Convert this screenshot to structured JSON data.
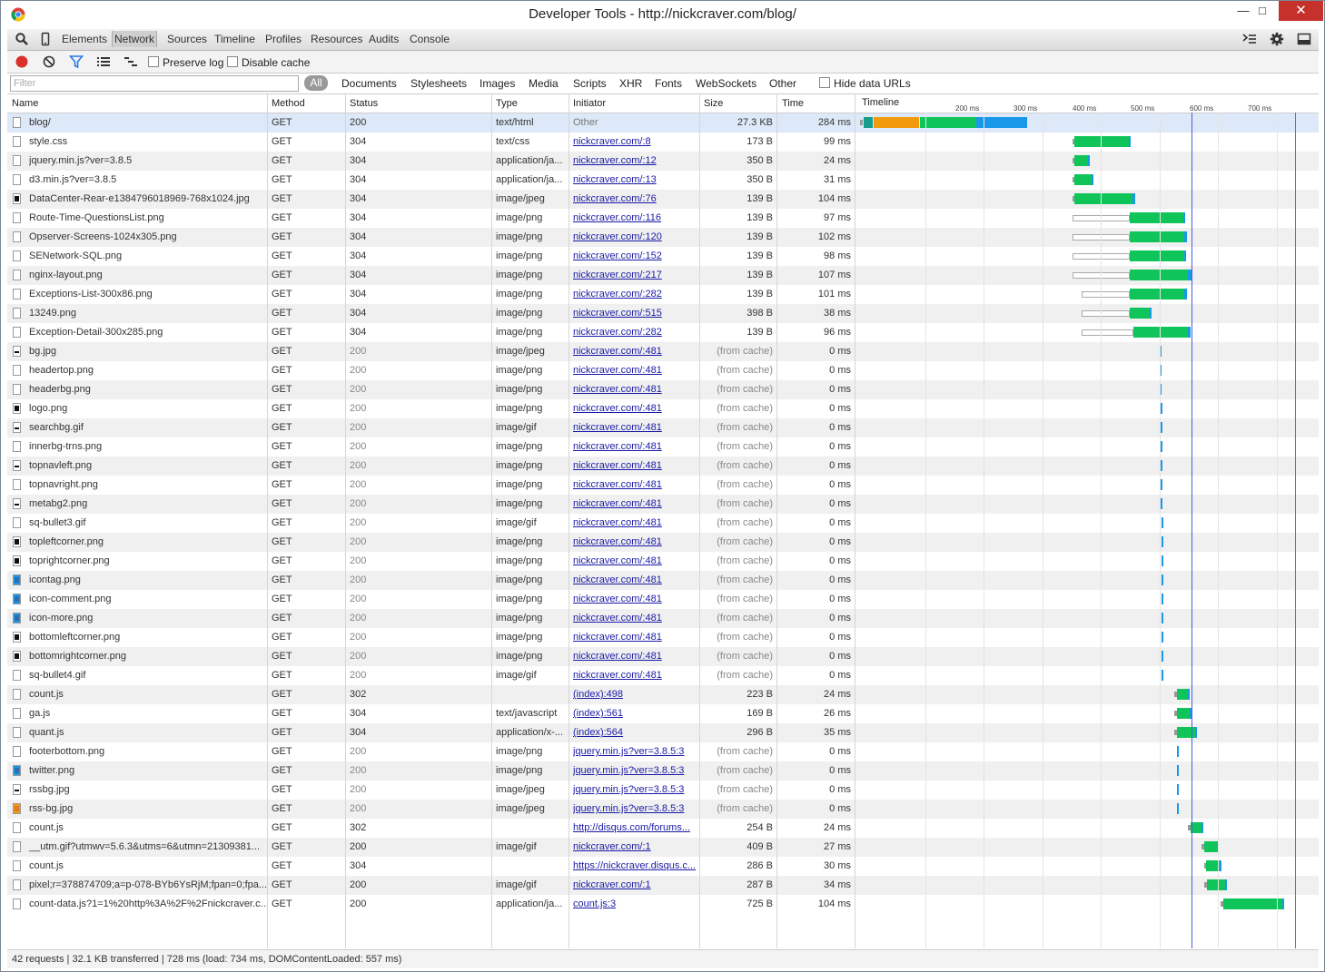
{
  "window": {
    "title": "Developer Tools - http://nickcraver.com/blog/"
  },
  "toolbar": {
    "panels": [
      "Elements",
      "Network",
      "Sources",
      "Timeline",
      "Profiles",
      "Resources",
      "Audits",
      "Console"
    ],
    "selected_panel": "Network"
  },
  "network_toolbar": {
    "preserve_log": "Preserve log",
    "disable_cache": "Disable cache"
  },
  "filter": {
    "placeholder": "Filter",
    "all_label": "All",
    "types": [
      "Documents",
      "Stylesheets",
      "Images",
      "Media",
      "Scripts",
      "XHR",
      "Fonts",
      "WebSockets",
      "Other"
    ],
    "hide_data_urls": "Hide data URLs"
  },
  "columns": {
    "name": "Name",
    "method": "Method",
    "status": "Status",
    "type": "Type",
    "initiator": "Initiator",
    "size": "Size",
    "time": "Time",
    "timeline": "Timeline"
  },
  "timeline_ticks": [
    "200 ms",
    "300 ms",
    "400 ms",
    "500 ms",
    "600 ms",
    "700 ms"
  ],
  "requests": [
    {
      "name": "blog/",
      "method": "GET",
      "status": "200",
      "type": "text/html",
      "initiator": "Other",
      "size": "27.3 KB",
      "time": "284 ms",
      "icon": "file"
    },
    {
      "name": "style.css",
      "method": "GET",
      "status": "304",
      "type": "text/css",
      "initiator": "nickcraver.com/:8",
      "size": "173 B",
      "time": "99 ms",
      "icon": "file"
    },
    {
      "name": "jquery.min.js?ver=3.8.5",
      "method": "GET",
      "status": "304",
      "type": "application/ja...",
      "initiator": "nickcraver.com/:12",
      "size": "350 B",
      "time": "24 ms",
      "icon": "file"
    },
    {
      "name": "d3.min.js?ver=3.8.5",
      "method": "GET",
      "status": "304",
      "type": "application/ja...",
      "initiator": "nickcraver.com/:13",
      "size": "350 B",
      "time": "31 ms",
      "icon": "file"
    },
    {
      "name": "DataCenter-Rear-e1384796018969-768x1024.jpg",
      "method": "GET",
      "status": "304",
      "type": "image/jpeg",
      "initiator": "nickcraver.com/:76",
      "size": "139 B",
      "time": "104 ms",
      "icon": "dark"
    },
    {
      "name": "Route-Time-QuestionsList.png",
      "method": "GET",
      "status": "304",
      "type": "image/png",
      "initiator": "nickcraver.com/:116",
      "size": "139 B",
      "time": "97 ms",
      "icon": "file"
    },
    {
      "name": "Opserver-Screens-1024x305.png",
      "method": "GET",
      "status": "304",
      "type": "image/png",
      "initiator": "nickcraver.com/:120",
      "size": "139 B",
      "time": "102 ms",
      "icon": "file"
    },
    {
      "name": "SENetwork-SQL.png",
      "method": "GET",
      "status": "304",
      "type": "image/png",
      "initiator": "nickcraver.com/:152",
      "size": "139 B",
      "time": "98 ms",
      "icon": "file"
    },
    {
      "name": "nginx-layout.png",
      "method": "GET",
      "status": "304",
      "type": "image/png",
      "initiator": "nickcraver.com/:217",
      "size": "139 B",
      "time": "107 ms",
      "icon": "file"
    },
    {
      "name": "Exceptions-List-300x86.png",
      "method": "GET",
      "status": "304",
      "type": "image/png",
      "initiator": "nickcraver.com/:282",
      "size": "139 B",
      "time": "101 ms",
      "icon": "file"
    },
    {
      "name": "13249.png",
      "method": "GET",
      "status": "304",
      "type": "image/png",
      "initiator": "nickcraver.com/:515",
      "size": "398 B",
      "time": "38 ms",
      "icon": "file"
    },
    {
      "name": "Exception-Detail-300x285.png",
      "method": "GET",
      "status": "304",
      "type": "image/png",
      "initiator": "nickcraver.com/:282",
      "size": "139 B",
      "time": "96 ms",
      "icon": "file"
    },
    {
      "name": "bg.jpg",
      "method": "GET",
      "status": "200",
      "type": "image/jpeg",
      "initiator": "nickcraver.com/:481",
      "size": "(from cache)",
      "time": "0 ms",
      "icon": "dash"
    },
    {
      "name": "headertop.png",
      "method": "GET",
      "status": "200",
      "type": "image/png",
      "initiator": "nickcraver.com/:481",
      "size": "(from cache)",
      "time": "0 ms",
      "icon": "file"
    },
    {
      "name": "headerbg.png",
      "method": "GET",
      "status": "200",
      "type": "image/png",
      "initiator": "nickcraver.com/:481",
      "size": "(from cache)",
      "time": "0 ms",
      "icon": "file"
    },
    {
      "name": "logo.png",
      "method": "GET",
      "status": "200",
      "type": "image/png",
      "initiator": "nickcraver.com/:481",
      "size": "(from cache)",
      "time": "0 ms",
      "icon": "dark"
    },
    {
      "name": "searchbg.gif",
      "method": "GET",
      "status": "200",
      "type": "image/gif",
      "initiator": "nickcraver.com/:481",
      "size": "(from cache)",
      "time": "0 ms",
      "icon": "dash"
    },
    {
      "name": "innerbg-trns.png",
      "method": "GET",
      "status": "200",
      "type": "image/png",
      "initiator": "nickcraver.com/:481",
      "size": "(from cache)",
      "time": "0 ms",
      "icon": "file"
    },
    {
      "name": "topnavleft.png",
      "method": "GET",
      "status": "200",
      "type": "image/png",
      "initiator": "nickcraver.com/:481",
      "size": "(from cache)",
      "time": "0 ms",
      "icon": "dash"
    },
    {
      "name": "topnavright.png",
      "method": "GET",
      "status": "200",
      "type": "image/png",
      "initiator": "nickcraver.com/:481",
      "size": "(from cache)",
      "time": "0 ms",
      "icon": "file"
    },
    {
      "name": "metabg2.png",
      "method": "GET",
      "status": "200",
      "type": "image/png",
      "initiator": "nickcraver.com/:481",
      "size": "(from cache)",
      "time": "0 ms",
      "icon": "dash"
    },
    {
      "name": "sq-bullet3.gif",
      "method": "GET",
      "status": "200",
      "type": "image/gif",
      "initiator": "nickcraver.com/:481",
      "size": "(from cache)",
      "time": "0 ms",
      "icon": "file"
    },
    {
      "name": "topleftcorner.png",
      "method": "GET",
      "status": "200",
      "type": "image/png",
      "initiator": "nickcraver.com/:481",
      "size": "(from cache)",
      "time": "0 ms",
      "icon": "dark"
    },
    {
      "name": "toprightcorner.png",
      "method": "GET",
      "status": "200",
      "type": "image/png",
      "initiator": "nickcraver.com/:481",
      "size": "(from cache)",
      "time": "0 ms",
      "icon": "dark"
    },
    {
      "name": "icontag.png",
      "method": "GET",
      "status": "200",
      "type": "image/png",
      "initiator": "nickcraver.com/:481",
      "size": "(from cache)",
      "time": "0 ms",
      "icon": "blue"
    },
    {
      "name": "icon-comment.png",
      "method": "GET",
      "status": "200",
      "type": "image/png",
      "initiator": "nickcraver.com/:481",
      "size": "(from cache)",
      "time": "0 ms",
      "icon": "blue"
    },
    {
      "name": "icon-more.png",
      "method": "GET",
      "status": "200",
      "type": "image/png",
      "initiator": "nickcraver.com/:481",
      "size": "(from cache)",
      "time": "0 ms",
      "icon": "blue"
    },
    {
      "name": "bottomleftcorner.png",
      "method": "GET",
      "status": "200",
      "type": "image/png",
      "initiator": "nickcraver.com/:481",
      "size": "(from cache)",
      "time": "0 ms",
      "icon": "dark"
    },
    {
      "name": "bottomrightcorner.png",
      "method": "GET",
      "status": "200",
      "type": "image/png",
      "initiator": "nickcraver.com/:481",
      "size": "(from cache)",
      "time": "0 ms",
      "icon": "dark"
    },
    {
      "name": "sq-bullet4.gif",
      "method": "GET",
      "status": "200",
      "type": "image/gif",
      "initiator": "nickcraver.com/:481",
      "size": "(from cache)",
      "time": "0 ms",
      "icon": "file"
    },
    {
      "name": "count.js",
      "method": "GET",
      "status": "302",
      "type": "",
      "initiator": "(index):498",
      "size": "223 B",
      "time": "24 ms",
      "icon": "file"
    },
    {
      "name": "ga.js",
      "method": "GET",
      "status": "304",
      "type": "text/javascript",
      "initiator": "(index):561",
      "size": "169 B",
      "time": "26 ms",
      "icon": "file"
    },
    {
      "name": "quant.js",
      "method": "GET",
      "status": "304",
      "type": "application/x-...",
      "initiator": "(index):564",
      "size": "296 B",
      "time": "35 ms",
      "icon": "file"
    },
    {
      "name": "footerbottom.png",
      "method": "GET",
      "status": "200",
      "type": "image/png",
      "initiator": "jquery.min.js?ver=3.8.5:3",
      "size": "(from cache)",
      "time": "0 ms",
      "icon": "file"
    },
    {
      "name": "twitter.png",
      "method": "GET",
      "status": "200",
      "type": "image/png",
      "initiator": "jquery.min.js?ver=3.8.5:3",
      "size": "(from cache)",
      "time": "0 ms",
      "icon": "blue"
    },
    {
      "name": "rssbg.jpg",
      "method": "GET",
      "status": "200",
      "type": "image/jpeg",
      "initiator": "jquery.min.js?ver=3.8.5:3",
      "size": "(from cache)",
      "time": "0 ms",
      "icon": "dash"
    },
    {
      "name": "rss-bg.jpg",
      "method": "GET",
      "status": "200",
      "type": "image/jpeg",
      "initiator": "jquery.min.js?ver=3.8.5:3",
      "size": "(from cache)",
      "time": "0 ms",
      "icon": "orange"
    },
    {
      "name": "count.js",
      "method": "GET",
      "status": "302",
      "type": "",
      "initiator": "http://disqus.com/forums...",
      "size": "254 B",
      "time": "24 ms",
      "icon": "file"
    },
    {
      "name": "__utm.gif?utmwv=5.6.3&utms=6&utmn=21309381...",
      "method": "GET",
      "status": "200",
      "type": "image/gif",
      "initiator": "nickcraver.com/:1",
      "size": "409 B",
      "time": "27 ms",
      "icon": "file"
    },
    {
      "name": "count.js",
      "method": "GET",
      "status": "304",
      "type": "",
      "initiator": "https://nickcraver.disqus.c...",
      "size": "286 B",
      "time": "30 ms",
      "icon": "file"
    },
    {
      "name": "pixel;r=378874709;a=p-078-BYb6YsRjM;fpan=0;fpa...",
      "method": "GET",
      "status": "200",
      "type": "image/gif",
      "initiator": "nickcraver.com/:1",
      "size": "287 B",
      "time": "34 ms",
      "icon": "file"
    },
    {
      "name": "count-data.js?1=1%20http%3A%2F%2Fnickcraver.c...",
      "method": "GET",
      "status": "200",
      "type": "application/ja...",
      "initiator": "count.js:3",
      "size": "725 B",
      "time": "104 ms",
      "icon": "file"
    }
  ],
  "status_bar": {
    "summary": "42 requests | 32.1 KB transferred | 728 ms (load: 734 ms, DOMContentLoaded: 557 ms)"
  }
}
